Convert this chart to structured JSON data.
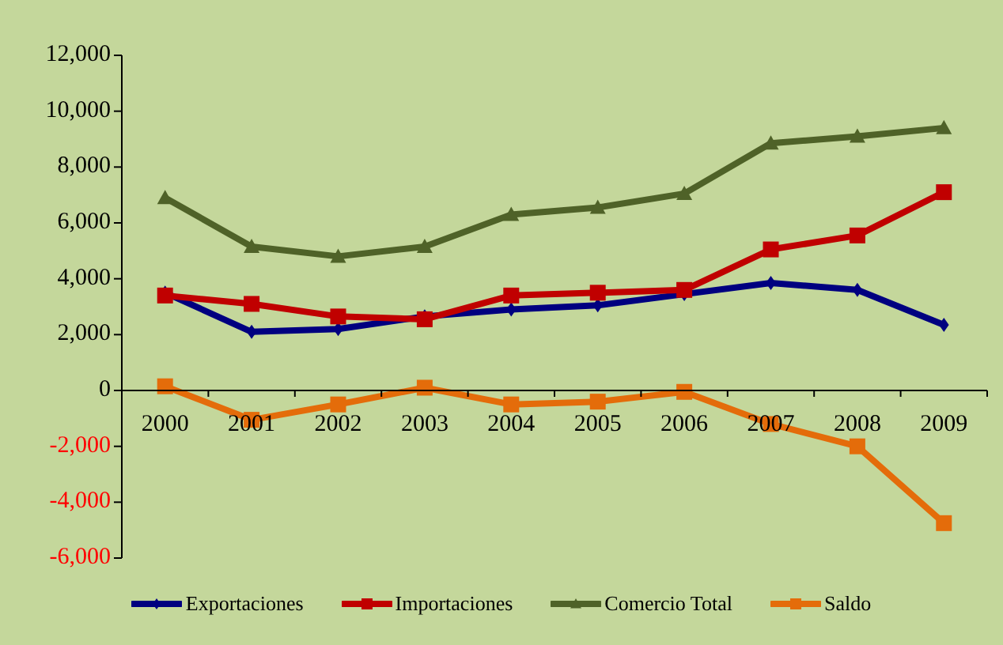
{
  "chart_data": {
    "type": "line",
    "categories": [
      "2000",
      "2001",
      "2002",
      "2003",
      "2004",
      "2005",
      "2006",
      "2007",
      "2008",
      "2009"
    ],
    "series": [
      {
        "name": "Exportaciones",
        "color": "#000080",
        "marker": "diamond",
        "values": [
          3500,
          2100,
          2200,
          2650,
          2900,
          3050,
          3450,
          3850,
          3600,
          2350
        ]
      },
      {
        "name": "Importaciones",
        "color": "#c00000",
        "marker": "square",
        "values": [
          3400,
          3100,
          2650,
          2550,
          3400,
          3500,
          3600,
          5050,
          5550,
          7100
        ]
      },
      {
        "name": "Comercio Total",
        "color": "#4f6228",
        "marker": "triangle",
        "values": [
          6900,
          5150,
          4800,
          5150,
          6300,
          6550,
          7050,
          8850,
          9100,
          9400
        ]
      },
      {
        "name": "Saldo",
        "color": "#e46c0a",
        "marker": "square",
        "values": [
          150,
          -1050,
          -500,
          100,
          -500,
          -400,
          -50,
          -1200,
          -2000,
          -4750
        ]
      }
    ],
    "ylim": [
      -6000,
      12000
    ],
    "yticks": [
      {
        "value": -6000,
        "label": "-6,000"
      },
      {
        "value": -4000,
        "label": "-4,000"
      },
      {
        "value": -2000,
        "label": "-2,000"
      },
      0,
      {
        "value": 2000,
        "label": "2,000"
      },
      {
        "value": 4000,
        "label": "4,000"
      },
      {
        "value": 6000,
        "label": "6,000"
      },
      {
        "value": 8000,
        "label": "8,000"
      },
      {
        "value": 10000,
        "label": "10,000"
      },
      {
        "value": 12000,
        "label": "12,000"
      }
    ],
    "legend": "bottom"
  }
}
